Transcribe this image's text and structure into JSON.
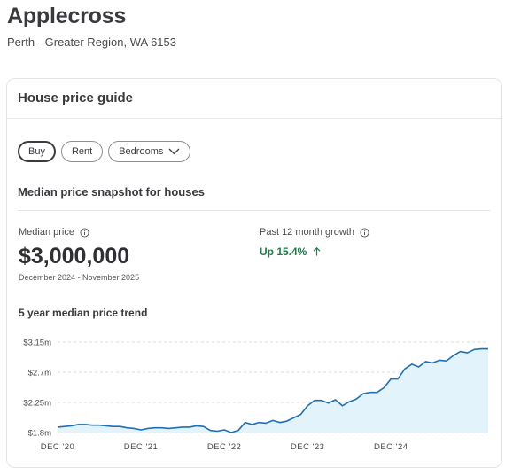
{
  "suburb": {
    "name": "Applecross",
    "region": "Perth - Greater Region, WA 6153"
  },
  "card": {
    "title": "House price guide",
    "chips": {
      "buy": "Buy",
      "rent": "Rent",
      "bedrooms": "Bedrooms"
    },
    "snapshot_title": "Median price snapshot for houses",
    "median": {
      "label": "Median price",
      "value": "$3,000,000",
      "period": "December 2024 - November 2025"
    },
    "growth": {
      "label": "Past 12 month growth",
      "value": "Up 15.4%"
    },
    "trend_title": "5 year median price trend"
  },
  "colors": {
    "line": "#1f6fb2",
    "area": "#e3f3fb",
    "growth": "#1f7a4a"
  },
  "chart_data": {
    "type": "area",
    "title": "5 year median price trend",
    "yticks": [
      "$3.15m",
      "$2.7m",
      "$2.25m",
      "$1.8m"
    ],
    "ytick_values": [
      3.15,
      2.7,
      2.25,
      1.8
    ],
    "ylim": [
      1.8,
      3.15
    ],
    "xticks": [
      "DEC '20",
      "DEC '21",
      "DEC '22",
      "DEC '23",
      "DEC '24"
    ],
    "xtick_index": [
      0,
      12,
      24,
      36,
      48
    ],
    "grid": true,
    "series": [
      {
        "values": [
          1.88,
          1.89,
          1.9,
          1.92,
          1.92,
          1.91,
          1.91,
          1.9,
          1.89,
          1.89,
          1.87,
          1.86,
          1.84,
          1.86,
          1.87,
          1.87,
          1.86,
          1.87,
          1.88,
          1.88,
          1.9,
          1.89,
          1.83,
          1.82,
          1.84,
          1.8,
          1.83,
          1.95,
          1.92,
          1.95,
          1.94,
          1.98,
          1.95,
          1.97,
          2.02,
          2.07,
          2.2,
          2.28,
          2.28,
          2.24,
          2.29,
          2.2,
          2.26,
          2.3,
          2.38,
          2.4,
          2.4,
          2.47,
          2.6,
          2.6,
          2.75,
          2.82,
          2.78,
          2.86,
          2.84,
          2.88,
          2.87,
          2.95,
          3.01,
          2.99,
          3.04,
          3.05,
          3.05
        ]
      }
    ]
  }
}
